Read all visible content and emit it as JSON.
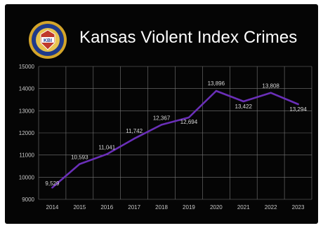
{
  "title": "Kansas Violent Index Crimes",
  "seal_text": "KBI",
  "colors": {
    "background": "#050505",
    "line": "#6a2fb8",
    "grid": "#777777",
    "text": "#ffffff"
  },
  "chart_data": {
    "type": "line",
    "title": "Kansas Violent Index Crimes",
    "xlabel": "",
    "ylabel": "",
    "x": [
      "2014",
      "2015",
      "2016",
      "2017",
      "2018",
      "2019",
      "2020",
      "2021",
      "2022",
      "2023"
    ],
    "series": [
      {
        "values": [
          9529,
          10593,
          11041,
          11742,
          12367,
          12694,
          13896,
          13422,
          13808,
          13294
        ]
      }
    ],
    "data_labels": [
      "9,529",
      "10,593",
      "11,041",
      "11,742",
      "12,367",
      "12,694",
      "13,896",
      "13,422",
      "13,808",
      "13,294"
    ],
    "yticks": [
      9000,
      10000,
      11000,
      12000,
      13000,
      14000,
      15000
    ],
    "ylim": [
      9000,
      15000
    ],
    "grid": true,
    "legend": "none"
  }
}
